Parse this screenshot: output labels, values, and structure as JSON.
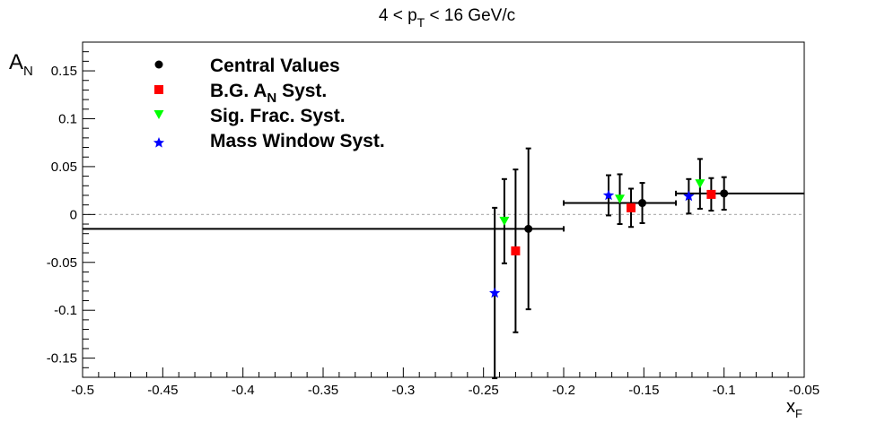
{
  "chart_data": {
    "type": "scatter",
    "title": {
      "base": "4 < p",
      "sub": "T",
      "rest": " < 16 GeV/c"
    },
    "xlabel": {
      "base": "x",
      "sub": "F"
    },
    "ylabel": {
      "base": "A",
      "sub": "N"
    },
    "xlim": [
      -0.5,
      -0.05
    ],
    "ylim": [
      -0.17,
      0.18
    ],
    "x_ticks": [
      -0.5,
      -0.45,
      -0.4,
      -0.35,
      -0.3,
      -0.25,
      -0.2,
      -0.15,
      -0.1,
      -0.05
    ],
    "x_tick_labels": [
      "-0.5",
      "-0.45",
      "-0.4",
      "-0.35",
      "-0.3",
      "-0.25",
      "-0.2",
      "-0.15",
      "-0.1",
      "-0.05"
    ],
    "y_ticks": [
      -0.15,
      -0.1,
      -0.05,
      0,
      0.05,
      0.1,
      0.15
    ],
    "y_tick_labels": [
      "-0.15",
      "-0.1",
      "-0.05",
      "0",
      "0.05",
      "0.1",
      "0.15"
    ],
    "zero_line": true,
    "grid": false,
    "legend_position": "top-left",
    "series": [
      {
        "label": "Central Values",
        "color": "#000000",
        "marker": "circle",
        "points": [
          {
            "x": -0.222,
            "y": -0.015,
            "yerr": 0.084,
            "xlow": -0.5,
            "xhigh": -0.2
          },
          {
            "x": -0.151,
            "y": 0.012,
            "yerr": 0.021,
            "xlow": -0.2,
            "xhigh": -0.13
          },
          {
            "x": -0.1,
            "y": 0.022,
            "yerr": 0.017,
            "xlow": -0.13,
            "xhigh": -0.05
          }
        ]
      },
      {
        "label": "B.G. A_N Syst.",
        "color": "#ff0000",
        "marker": "square",
        "points": [
          {
            "x": -0.23,
            "y": -0.038,
            "yerr": 0.085
          },
          {
            "x": -0.158,
            "y": 0.007,
            "yerr": 0.02
          },
          {
            "x": -0.108,
            "y": 0.021,
            "yerr": 0.017
          }
        ]
      },
      {
        "label": "Sig. Frac. Syst.",
        "color": "#00ff00",
        "marker": "triangle-down",
        "points": [
          {
            "x": -0.237,
            "y": -0.007,
            "yerr": 0.044
          },
          {
            "x": -0.165,
            "y": 0.016,
            "yerr": 0.026
          },
          {
            "x": -0.115,
            "y": 0.032,
            "yerr": 0.026
          }
        ]
      },
      {
        "label": "Mass Window Syst.",
        "color": "#0000ff",
        "marker": "star",
        "points": [
          {
            "x": -0.243,
            "y": -0.082,
            "yerr": 0.089
          },
          {
            "x": -0.172,
            "y": 0.02,
            "yerr": 0.021
          },
          {
            "x": -0.122,
            "y": 0.019,
            "yerr": 0.018
          }
        ]
      }
    ],
    "legend": [
      {
        "text": "Central Values",
        "color": "#000000",
        "marker": "circle"
      },
      {
        "base": "B.G. A",
        "sub": "N",
        "rest": " Syst.",
        "color": "#ff0000",
        "marker": "square"
      },
      {
        "text": "Sig. Frac. Syst.",
        "color": "#00ff00",
        "marker": "triangle-down"
      },
      {
        "text": "Mass Window Syst.",
        "color": "#0000ff",
        "marker": "star"
      }
    ]
  }
}
